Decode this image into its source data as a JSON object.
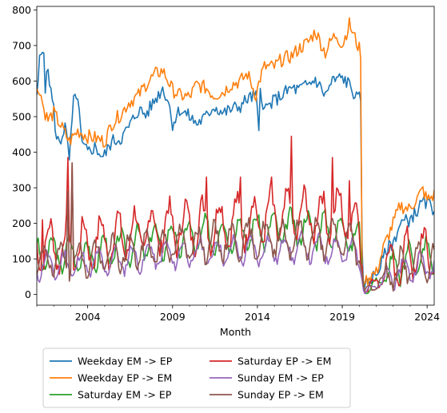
{
  "chart_data": {
    "type": "line",
    "title": "",
    "xlabel": "Month",
    "ylabel": "",
    "x_start": "2001-01",
    "x_end": "2024-06",
    "xlim": [
      "2001-01",
      "2024-06"
    ],
    "ylim": [
      -30,
      810
    ],
    "x_ticks": [
      {
        "label": "2004",
        "date": "2004-01"
      },
      {
        "label": "2009",
        "date": "2009-01"
      },
      {
        "label": "2014",
        "date": "2014-01"
      },
      {
        "label": "2019",
        "date": "2019-01"
      },
      {
        "label": "2024",
        "date": "2024-01"
      }
    ],
    "y_ticks": [
      0,
      100,
      200,
      300,
      400,
      500,
      600,
      700,
      800
    ],
    "grid": false,
    "legend_position": "below the plot, two columns",
    "series": [
      {
        "name": "Weekday EM -> EP",
        "color": "#1f77b4",
        "keyframes": [
          [
            "2001-01",
            545
          ],
          [
            "2001-03",
            660
          ],
          [
            "2001-06",
            698
          ],
          [
            "2001-07",
            580
          ],
          [
            "2001-09",
            635
          ],
          [
            "2001-11",
            570
          ],
          [
            "2002-01",
            520
          ],
          [
            "2002-03",
            432
          ],
          [
            "2002-06",
            435
          ],
          [
            "2002-09",
            475
          ],
          [
            "2002-12",
            380
          ],
          [
            "2003-03",
            540
          ],
          [
            "2003-05",
            565
          ],
          [
            "2003-06",
            545
          ],
          [
            "2003-09",
            420
          ],
          [
            "2004-01",
            400
          ],
          [
            "2004-06",
            415
          ],
          [
            "2004-12",
            385
          ],
          [
            "2005-06",
            430
          ],
          [
            "2006-01",
            440
          ],
          [
            "2006-06",
            470
          ],
          [
            "2007-01",
            520
          ],
          [
            "2007-06",
            505
          ],
          [
            "2008-01",
            550
          ],
          [
            "2008-06",
            580
          ],
          [
            "2008-10",
            545
          ],
          [
            "2009-01",
            480
          ],
          [
            "2009-06",
            520
          ],
          [
            "2010-01",
            500
          ],
          [
            "2010-06",
            480
          ],
          [
            "2011-01",
            500
          ],
          [
            "2011-06",
            530
          ],
          [
            "2012-01",
            510
          ],
          [
            "2012-06",
            520
          ],
          [
            "2013-01",
            530
          ],
          [
            "2013-06",
            550
          ],
          [
            "2013-12",
            560
          ],
          [
            "2014-02",
            450
          ],
          [
            "2014-03",
            580
          ],
          [
            "2014-06",
            520
          ],
          [
            "2015-01",
            545
          ],
          [
            "2015-06",
            560
          ],
          [
            "2016-01",
            580
          ],
          [
            "2016-06",
            575
          ],
          [
            "2017-01",
            590
          ],
          [
            "2017-06",
            605
          ],
          [
            "2018-01",
            560
          ],
          [
            "2018-06",
            600
          ],
          [
            "2019-01",
            610
          ],
          [
            "2019-06",
            590
          ],
          [
            "2019-12",
            545
          ],
          [
            "2020-02",
            560
          ],
          [
            "2020-03",
            140
          ],
          [
            "2020-04",
            15
          ],
          [
            "2020-06",
            30
          ],
          [
            "2020-09",
            45
          ],
          [
            "2021-01",
            55
          ],
          [
            "2021-06",
            100
          ],
          [
            "2021-09",
            130
          ],
          [
            "2022-01",
            145
          ],
          [
            "2022-06",
            200
          ],
          [
            "2022-12",
            210
          ],
          [
            "2023-06",
            235
          ],
          [
            "2023-10",
            260
          ],
          [
            "2024-01",
            255
          ],
          [
            "2024-06",
            240
          ]
        ]
      },
      {
        "name": "Weekday EP -> EM",
        "color": "#ff7f0e",
        "keyframes": [
          [
            "2001-01",
            570
          ],
          [
            "2001-03",
            580
          ],
          [
            "2001-06",
            520
          ],
          [
            "2001-09",
            490
          ],
          [
            "2002-01",
            510
          ],
          [
            "2002-06",
            475
          ],
          [
            "2002-12",
            430
          ],
          [
            "2003-06",
            460
          ],
          [
            "2004-01",
            445
          ],
          [
            "2004-06",
            440
          ],
          [
            "2005-01",
            430
          ],
          [
            "2005-06",
            480
          ],
          [
            "2006-01",
            510
          ],
          [
            "2006-06",
            540
          ],
          [
            "2007-01",
            560
          ],
          [
            "2007-06",
            590
          ],
          [
            "2008-01",
            620
          ],
          [
            "2008-06",
            630
          ],
          [
            "2008-10",
            600
          ],
          [
            "2009-01",
            575
          ],
          [
            "2009-06",
            560
          ],
          [
            "2010-01",
            555
          ],
          [
            "2010-06",
            590
          ],
          [
            "2011-01",
            580
          ],
          [
            "2011-06",
            560
          ],
          [
            "2012-01",
            570
          ],
          [
            "2012-06",
            590
          ],
          [
            "2013-01",
            600
          ],
          [
            "2013-06",
            620
          ],
          [
            "2013-12",
            560
          ],
          [
            "2014-03",
            610
          ],
          [
            "2014-06",
            640
          ],
          [
            "2015-01",
            640
          ],
          [
            "2015-06",
            660
          ],
          [
            "2016-01",
            670
          ],
          [
            "2016-06",
            690
          ],
          [
            "2017-01",
            710
          ],
          [
            "2017-06",
            740
          ],
          [
            "2018-01",
            680
          ],
          [
            "2018-06",
            720
          ],
          [
            "2018-09",
            730
          ],
          [
            "2019-01",
            700
          ],
          [
            "2019-06",
            760
          ],
          [
            "2019-12",
            700
          ],
          [
            "2020-02",
            680
          ],
          [
            "2020-03",
            80
          ],
          [
            "2020-04",
            25
          ],
          [
            "2020-06",
            40
          ],
          [
            "2020-09",
            55
          ],
          [
            "2021-01",
            60
          ],
          [
            "2021-06",
            130
          ],
          [
            "2021-09",
            160
          ],
          [
            "2022-01",
            200
          ],
          [
            "2022-06",
            250
          ],
          [
            "2022-12",
            240
          ],
          [
            "2023-06",
            270
          ],
          [
            "2023-10",
            295
          ],
          [
            "2024-01",
            265
          ],
          [
            "2024-06",
            280
          ]
        ]
      },
      {
        "name": "Saturday EM -> EP",
        "color": "#2ca02c",
        "base": [
          [
            2001,
            115
          ],
          [
            2004,
            110
          ],
          [
            2008,
            150
          ],
          [
            2012,
            170
          ],
          [
            2016,
            185
          ],
          [
            2019,
            180
          ],
          [
            2020,
            150
          ],
          [
            2020.3,
            10
          ],
          [
            2021,
            30
          ],
          [
            2022,
            70
          ],
          [
            2023,
            100
          ],
          [
            2024.5,
            110
          ]
        ],
        "seasonal": 45,
        "seed": 3
      },
      {
        "name": "Saturday EP -> EM",
        "color": "#d62728",
        "base": [
          [
            2001,
            135
          ],
          [
            2004,
            140
          ],
          [
            2008,
            185
          ],
          [
            2012,
            200
          ],
          [
            2016,
            220
          ],
          [
            2019,
            225
          ],
          [
            2020,
            190
          ],
          [
            2020.3,
            10
          ],
          [
            2021,
            35
          ],
          [
            2022,
            80
          ],
          [
            2023,
            110
          ],
          [
            2024.5,
            120
          ]
        ],
        "seasonal": 65,
        "seed": 7,
        "spikes": [
          [
            "2001-05",
            210
          ],
          [
            "2002-11",
            385
          ],
          [
            "2003-02",
            370
          ],
          [
            "2011-01",
            330
          ],
          [
            "2013-01",
            330
          ],
          [
            "2014-11",
            330
          ],
          [
            "2016-01",
            445
          ],
          [
            "2018-06",
            385
          ],
          [
            "2019-06",
            320
          ]
        ]
      },
      {
        "name": "Sunday EM -> EP",
        "color": "#9467bd",
        "base": [
          [
            2001,
            80
          ],
          [
            2004,
            85
          ],
          [
            2008,
            110
          ],
          [
            2012,
            120
          ],
          [
            2016,
            130
          ],
          [
            2019,
            125
          ],
          [
            2020,
            110
          ],
          [
            2020.3,
            5
          ],
          [
            2021,
            25
          ],
          [
            2022,
            55
          ],
          [
            2023,
            75
          ],
          [
            2024.5,
            85
          ]
        ],
        "seasonal": 35,
        "seed": 11
      },
      {
        "name": "Sunday EP -> EM",
        "color": "#8c564b",
        "base": [
          [
            2001,
            95
          ],
          [
            2004,
            100
          ],
          [
            2008,
            135
          ],
          [
            2012,
            150
          ],
          [
            2016,
            160
          ],
          [
            2019,
            155
          ],
          [
            2020,
            130
          ],
          [
            2020.3,
            5
          ],
          [
            2021,
            30
          ],
          [
            2022,
            65
          ],
          [
            2023,
            85
          ],
          [
            2024.5,
            95
          ]
        ],
        "seasonal": 45,
        "seed": 19,
        "spikes": [
          [
            "2002-11",
            290
          ],
          [
            "2003-02",
            370
          ]
        ]
      }
    ]
  }
}
